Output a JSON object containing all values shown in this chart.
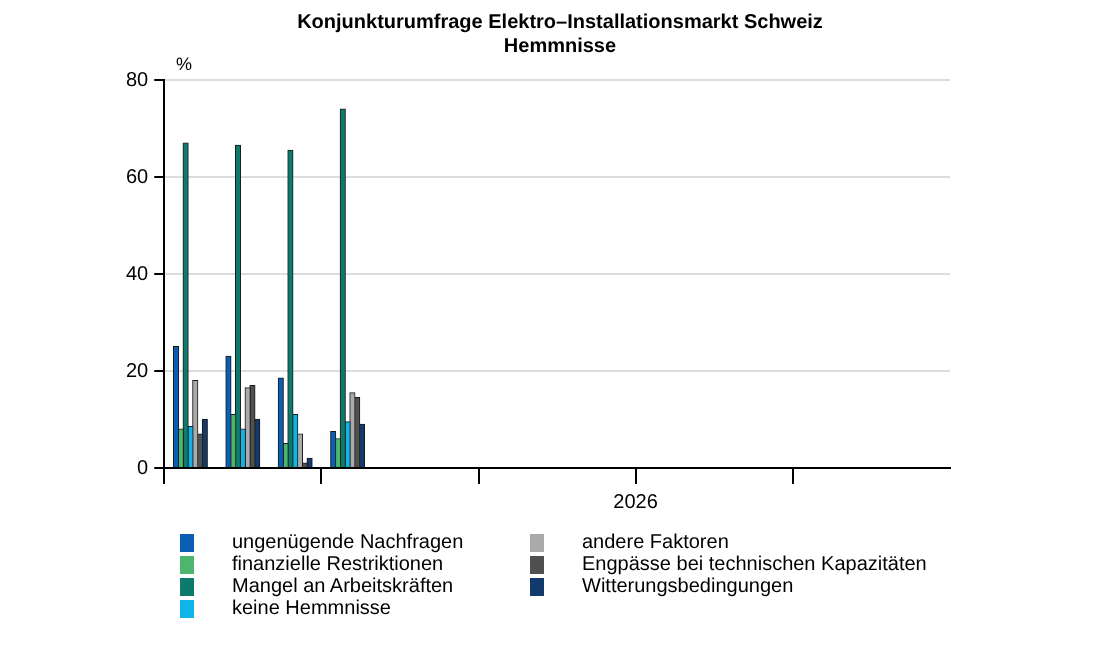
{
  "chart_data": {
    "type": "bar",
    "title": "Konjunkturumfrage Elektro–Installationsmarkt Schweiz",
    "subtitle": "Hemmnisse",
    "ylabel": "%",
    "categories": [
      null,
      null,
      null,
      null,
      null,
      null,
      null,
      null,
      "2026",
      null,
      null,
      null,
      null,
      null,
      null
    ],
    "ylim": [
      0,
      80
    ],
    "yticks": [
      0,
      20,
      40,
      60,
      80
    ],
    "grid": "y",
    "legend": "bottom",
    "series": [
      {
        "name": "ungenügende Nachfragen",
        "color": "#0a5fb4",
        "values": [
          25,
          23,
          18.5,
          7.5,
          null,
          null,
          null,
          null,
          null,
          null,
          null,
          null,
          null,
          null,
          null
        ]
      },
      {
        "name": "finanzielle Restriktionen",
        "color": "#4cb56e",
        "values": [
          8,
          11,
          5,
          6,
          null,
          null,
          null,
          null,
          null,
          null,
          null,
          null,
          null,
          null,
          null
        ]
      },
      {
        "name": "Mangel an Arbeitskräften",
        "color": "#0e7a6c",
        "values": [
          67,
          66.5,
          65.5,
          74,
          null,
          null,
          null,
          null,
          null,
          null,
          null,
          null,
          null,
          null,
          null
        ]
      },
      {
        "name": "keine Hemmnisse",
        "color": "#10b4e6",
        "values": [
          8.5,
          8,
          11,
          9.5,
          null,
          null,
          null,
          null,
          null,
          null,
          null,
          null,
          null,
          null,
          null
        ]
      },
      {
        "name": "andere Faktoren",
        "color": "#aaaaaa",
        "values": [
          18,
          16.5,
          7,
          15.5,
          null,
          null,
          null,
          null,
          null,
          null,
          null,
          null,
          null,
          null,
          null
        ]
      },
      {
        "name": "Engpässe bei technischen Kapazitäten",
        "color": "#505050",
        "values": [
          7,
          17,
          1,
          14.5,
          null,
          null,
          null,
          null,
          null,
          null,
          null,
          null,
          null,
          null,
          null
        ]
      },
      {
        "name": "Witterungsbedingungen",
        "color": "#123a6b",
        "values": [
          10,
          10,
          2,
          9,
          null,
          null,
          null,
          null,
          null,
          null,
          null,
          null,
          null,
          null,
          null
        ]
      }
    ]
  }
}
